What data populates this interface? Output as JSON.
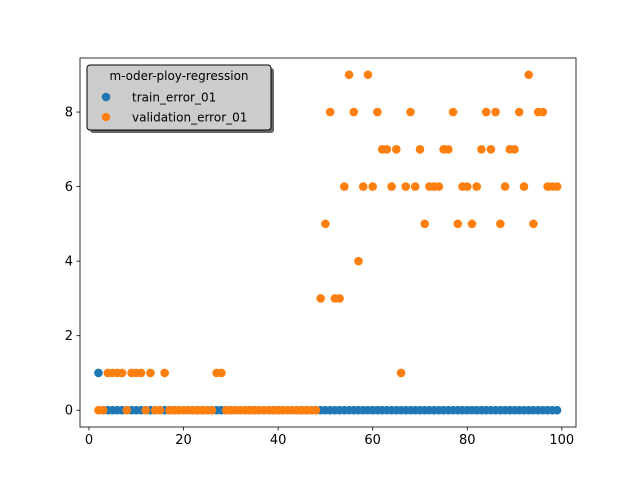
{
  "chart_data": {
    "type": "scatter",
    "title": "",
    "xlabel": "",
    "ylabel": "",
    "xlim": [
      -1.9,
      103.0
    ],
    "ylim": [
      -0.45,
      9.45
    ],
    "xticks": [
      0,
      20,
      40,
      60,
      80,
      100
    ],
    "yticks": [
      0,
      2,
      4,
      6,
      8
    ],
    "xtick_labels": [
      "0",
      "20",
      "40",
      "60",
      "80",
      "100"
    ],
    "ytick_labels": [
      "0",
      "2",
      "4",
      "6",
      "8"
    ],
    "grid": false,
    "legend": {
      "title": "m-oder-ploy-regression",
      "placement": "top-left",
      "entries": [
        "train_error_01",
        "validation_error_01"
      ]
    },
    "series": [
      {
        "name": "train_error_01",
        "color": "#1f77b4",
        "x": [
          2,
          3,
          4,
          5,
          6,
          7,
          8,
          9,
          10,
          11,
          12,
          13,
          14,
          15,
          16,
          17,
          18,
          19,
          20,
          21,
          22,
          23,
          24,
          25,
          26,
          27,
          28,
          29,
          30,
          31,
          32,
          33,
          34,
          35,
          36,
          37,
          38,
          39,
          40,
          41,
          42,
          43,
          44,
          45,
          46,
          47,
          48,
          49,
          50,
          51,
          52,
          53,
          54,
          55,
          56,
          57,
          58,
          59,
          60,
          61,
          62,
          63,
          64,
          65,
          66,
          67,
          68,
          69,
          70,
          71,
          72,
          73,
          74,
          75,
          76,
          77,
          78,
          79,
          80,
          81,
          82,
          83,
          84,
          85,
          86,
          87,
          88,
          89,
          90,
          91,
          92,
          93,
          94,
          95,
          96,
          97,
          98,
          99
        ],
        "y": [
          1,
          0,
          0,
          0,
          0,
          0,
          0,
          0,
          0,
          0,
          0,
          0,
          0,
          0,
          0,
          0,
          0,
          0,
          0,
          0,
          0,
          0,
          0,
          0,
          0,
          0,
          0,
          0,
          0,
          0,
          0,
          0,
          0,
          0,
          0,
          0,
          0,
          0,
          0,
          0,
          0,
          0,
          0,
          0,
          0,
          0,
          0,
          0,
          0,
          0,
          0,
          0,
          0,
          0,
          0,
          0,
          0,
          0,
          0,
          0,
          0,
          0,
          0,
          0,
          0,
          0,
          0,
          0,
          0,
          0,
          0,
          0,
          0,
          0,
          0,
          0,
          0,
          0,
          0,
          0,
          0,
          0,
          0,
          0,
          0,
          0,
          0,
          0,
          0,
          0,
          0,
          0,
          0,
          0,
          0,
          0,
          0,
          0
        ]
      },
      {
        "name": "validation_error_01",
        "color": "#ff7f0e",
        "x": [
          2,
          3,
          4,
          5,
          6,
          7,
          8,
          9,
          10,
          11,
          12,
          13,
          14,
          15,
          16,
          17,
          18,
          19,
          20,
          21,
          22,
          23,
          24,
          25,
          26,
          27,
          28,
          29,
          30,
          31,
          32,
          33,
          34,
          35,
          36,
          37,
          38,
          39,
          40,
          41,
          42,
          43,
          44,
          45,
          46,
          47,
          48,
          49,
          50,
          51,
          52,
          53,
          54,
          55,
          56,
          57,
          58,
          59,
          60,
          61,
          62,
          63,
          64,
          65,
          66,
          67,
          68,
          69,
          70,
          71,
          72,
          73,
          74,
          75,
          76,
          77,
          78,
          79,
          80,
          81,
          82,
          83,
          84,
          85,
          86,
          87,
          88,
          89,
          90,
          91,
          92,
          93,
          94,
          95,
          96,
          97,
          98,
          99
        ],
        "y": [
          0,
          0,
          1,
          1,
          1,
          1,
          0,
          1,
          1,
          1,
          0,
          1,
          0,
          0,
          1,
          0,
          0,
          0,
          0,
          0,
          0,
          0,
          0,
          0,
          0,
          1,
          1,
          0,
          0,
          0,
          0,
          0,
          0,
          0,
          0,
          0,
          0,
          0,
          0,
          0,
          0,
          0,
          0,
          0,
          0,
          0,
          0,
          3,
          5,
          8,
          3,
          3,
          6,
          9,
          8,
          4,
          6,
          9,
          6,
          8,
          7,
          7,
          6,
          7,
          1,
          6,
          8,
          6,
          7,
          5,
          6,
          6,
          6,
          7,
          7,
          8,
          5,
          6,
          6,
          5,
          6,
          7,
          8,
          7,
          8,
          5,
          6,
          7,
          7,
          8,
          6,
          9,
          5,
          8,
          8,
          6,
          6,
          6
        ]
      }
    ]
  }
}
